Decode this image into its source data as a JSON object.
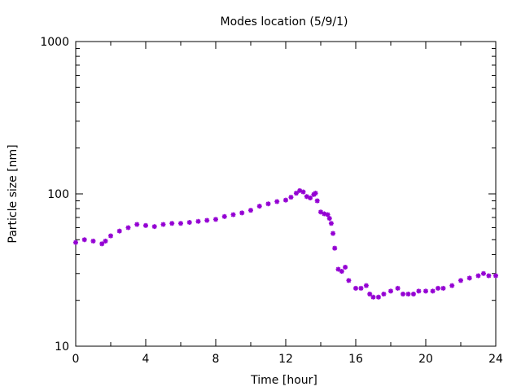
{
  "chart_data": {
    "type": "scatter",
    "title": "Modes location (5/9/1)",
    "xlabel": "Time [hour]",
    "ylabel": "Particle size [nm]",
    "xlim": [
      0,
      24
    ],
    "ylim": [
      10,
      1000
    ],
    "yscale": "log",
    "grid": false,
    "legend": "none",
    "marker_color": "#9400d3",
    "xticks": [
      "0",
      "4",
      "8",
      "12",
      "16",
      "20",
      "24"
    ],
    "yticks": [
      "10",
      "100",
      "1000"
    ],
    "series": [
      {
        "x": [
          0.0,
          0.5,
          1.0,
          1.5,
          1.7,
          2.0,
          2.5,
          3.0,
          3.5,
          4.0,
          4.5,
          5.0,
          5.5,
          6.0,
          6.5,
          7.0,
          7.5,
          8.0,
          8.5,
          9.0,
          9.5,
          10.0,
          10.5,
          11.0,
          11.5,
          12.0,
          12.3,
          12.6,
          12.8,
          13.0,
          13.2,
          13.4,
          13.6,
          13.7,
          13.8,
          14.0,
          14.2,
          14.4,
          14.5,
          14.6,
          14.7,
          14.8,
          15.0,
          15.2,
          15.4,
          15.6,
          16.0,
          16.3,
          16.6,
          16.8,
          17.0,
          17.3,
          17.6,
          18.0,
          18.4,
          18.7,
          19.0,
          19.3,
          19.6,
          20.0,
          20.4,
          20.7,
          21.0,
          21.5,
          22.0,
          22.5,
          23.0,
          23.3,
          23.6,
          24.0
        ],
        "y": [
          48,
          50,
          49,
          47,
          49,
          53,
          57,
          60,
          63,
          62,
          61,
          63,
          64,
          64,
          65,
          66,
          67,
          68,
          71,
          73,
          75,
          78,
          83,
          86,
          89,
          91,
          95,
          101,
          105,
          103,
          96,
          94,
          99,
          101,
          90,
          76,
          74,
          73,
          69,
          64,
          55,
          44,
          32,
          31,
          33,
          27,
          24,
          24,
          25,
          22,
          21,
          21,
          22,
          23,
          24,
          22,
          22,
          22,
          23,
          23,
          23,
          24,
          24,
          25,
          27,
          28,
          29,
          30,
          29,
          29
        ]
      }
    ]
  }
}
